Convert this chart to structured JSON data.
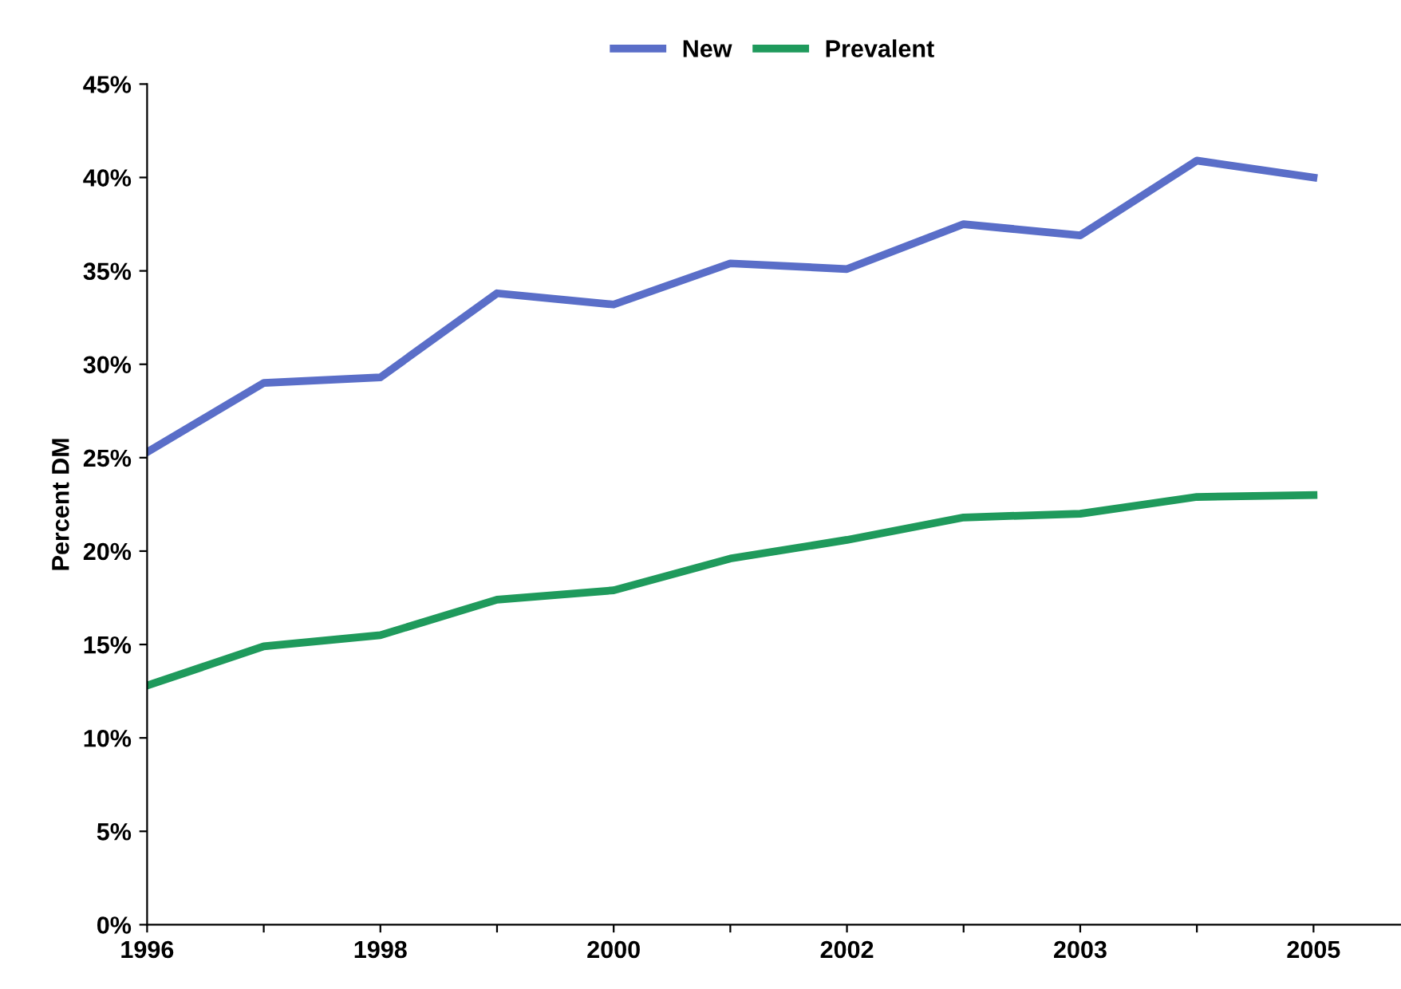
{
  "chart_data": {
    "type": "line",
    "ylabel": "Percent DM",
    "categories": [
      "1996",
      null,
      "1998",
      null,
      "2000",
      null,
      "2002",
      null,
      "2003",
      null,
      "2005"
    ],
    "series": [
      {
        "name": "New",
        "color": "#5a6ec8",
        "values": [
          25.3,
          29.0,
          29.3,
          33.8,
          33.2,
          35.4,
          35.1,
          37.5,
          36.9,
          40.9,
          40.0
        ]
      },
      {
        "name": "Prevalent",
        "color": "#1f9a5c",
        "values": [
          12.8,
          14.9,
          15.5,
          17.4,
          17.9,
          19.6,
          20.6,
          21.8,
          22.0,
          22.9,
          23.0
        ]
      }
    ],
    "ylim": [
      0,
      45
    ],
    "yticks": [
      {
        "value": 0,
        "label": "0%"
      },
      {
        "value": 5,
        "label": "5%"
      },
      {
        "value": 10,
        "label": "10%"
      },
      {
        "value": 15,
        "label": "15%"
      },
      {
        "value": 20,
        "label": "20%"
      },
      {
        "value": 25,
        "label": "25%"
      },
      {
        "value": 30,
        "label": "30%"
      },
      {
        "value": 35,
        "label": "35%"
      },
      {
        "value": 40,
        "label": "40%"
      },
      {
        "value": 45,
        "label": "45%"
      }
    ],
    "grid": false,
    "legend": "top",
    "marker": "none",
    "line_style": "solid"
  }
}
